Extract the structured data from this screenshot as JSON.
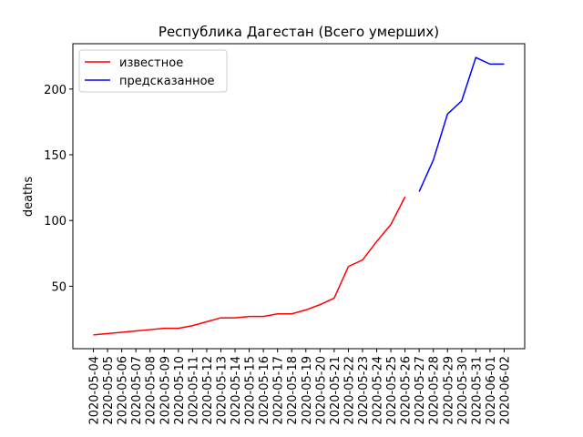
{
  "chart_data": {
    "type": "line",
    "title": "Республика Дагестан (Всего умерших)",
    "ylabel": "deaths",
    "categories": [
      "2020-05-04",
      "2020-05-05",
      "2020-05-06",
      "2020-05-07",
      "2020-05-08",
      "2020-05-09",
      "2020-05-10",
      "2020-05-11",
      "2020-05-12",
      "2020-05-13",
      "2020-05-14",
      "2020-05-15",
      "2020-05-16",
      "2020-05-17",
      "2020-05-18",
      "2020-05-19",
      "2020-05-20",
      "2020-05-21",
      "2020-05-22",
      "2020-05-23",
      "2020-05-24",
      "2020-05-25",
      "2020-05-26",
      "2020-05-27",
      "2020-05-28",
      "2020-05-29",
      "2020-05-30",
      "2020-05-31",
      "2020-06-01",
      "2020-06-02"
    ],
    "series": [
      {
        "name": "известное",
        "color": "#ff0000",
        "values": [
          13,
          14,
          15,
          16,
          17,
          18,
          18,
          20,
          23,
          26,
          26,
          27,
          27,
          29,
          29,
          32,
          36,
          41,
          65,
          70,
          84,
          97,
          118,
          null,
          null,
          null,
          null,
          null,
          null,
          null
        ]
      },
      {
        "name": "предсказанное",
        "color": "#0000ff",
        "values": [
          null,
          null,
          null,
          null,
          null,
          null,
          null,
          null,
          null,
          null,
          null,
          null,
          null,
          null,
          null,
          null,
          null,
          null,
          null,
          null,
          null,
          null,
          null,
          122,
          146,
          181,
          191,
          224,
          219,
          219
        ]
      }
    ],
    "ylim": [
      2.5,
      234.5
    ],
    "yticks": [
      50,
      100,
      150,
      200
    ],
    "legend": "upper left"
  }
}
